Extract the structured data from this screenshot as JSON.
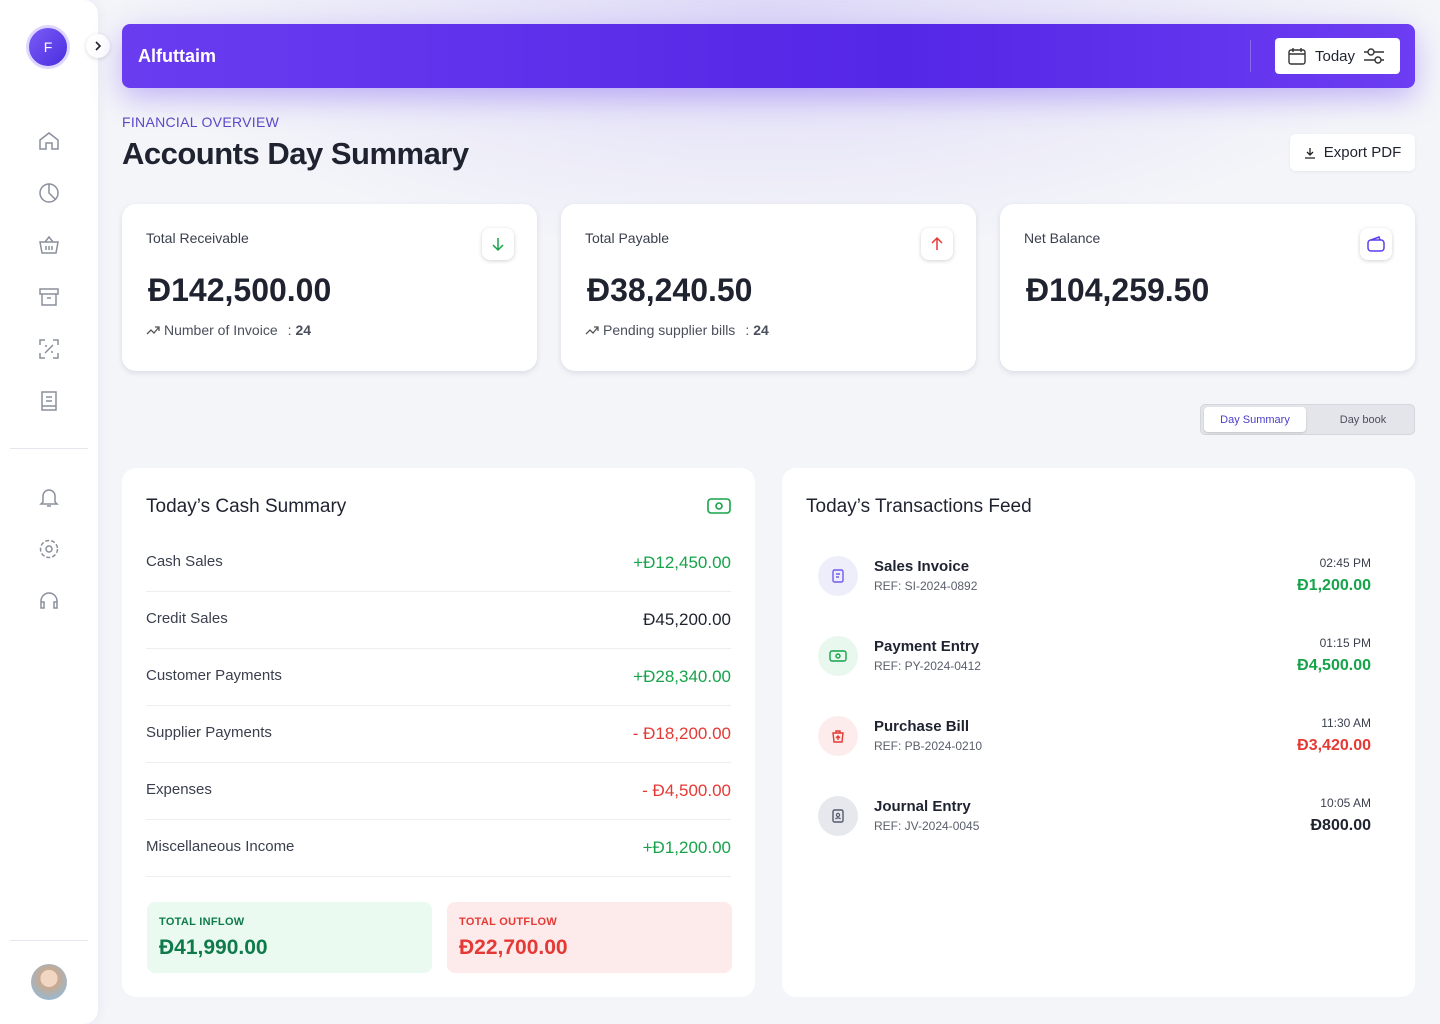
{
  "brand": "Alfuttaim",
  "date_filter": "Today",
  "header": {
    "eyebrow": "FINANCIAL OVERVIEW",
    "title": "Accounts Day Summary",
    "export": "Export PDF"
  },
  "cards": [
    {
      "label": "Total Receivable",
      "amount": "Đ142,500.00",
      "note": "Number of Invoice",
      "count": "24",
      "color": "#16a34a"
    },
    {
      "label": "Total Payable",
      "amount": "Đ38,240.50",
      "note": "Pending supplier bills",
      "count": "24",
      "color": "#e53935"
    },
    {
      "label": "Net Balance",
      "amount": "Đ104,259.50",
      "color": "#5b3df0"
    }
  ],
  "tabs": [
    "Day Summary",
    "Day book"
  ],
  "cash_summary": {
    "title": "Today’s Cash Summary",
    "rows": [
      {
        "label": "Cash Sales",
        "amount": "+Đ12,450.00",
        "color": "#16a34a"
      },
      {
        "label": "Credit Sales",
        "amount": "Đ45,200.00",
        "color": "#1f2330"
      },
      {
        "label": "Customer Payments",
        "amount": "+Đ28,340.00",
        "color": "#16a34a"
      },
      {
        "label": "Supplier Payments",
        "amount": "- Đ18,200.00",
        "color": "#e53935"
      },
      {
        "label": "Expenses",
        "amount": "- Đ4,500.00",
        "color": "#e53935"
      },
      {
        "label": "Miscellaneous Income",
        "amount": "+Đ1,200.00",
        "color": "#16a34a"
      }
    ],
    "totals": [
      {
        "label": "TOTAL INFLOW",
        "amount": "Đ41,990.00",
        "color": "#0f7a4a",
        "bg": "#eafaf1"
      },
      {
        "label": "TOTAL OUTFLOW",
        "amount": "Đ22,700.00",
        "color": "#e53935",
        "bg": "#fdeaea"
      }
    ]
  },
  "feed": {
    "title": "Today’s Transactions Feed",
    "items": [
      {
        "title": "Sales Invoice",
        "ref": "REF: SI-2024-0892",
        "time": "02:45 PM",
        "amount": "Đ1,200.00",
        "color": "#16a34a",
        "icon_bg": "#eeeefb",
        "icon_color": "#6d5cf0"
      },
      {
        "title": "Payment Entry",
        "ref": "REF: PY-2024-0412",
        "time": "01:15 PM",
        "amount": "Đ4,500.00",
        "color": "#16a34a",
        "icon_bg": "#e8f8ee",
        "icon_color": "#16a34a"
      },
      {
        "title": "Purchase Bill",
        "ref": "REF: PB-2024-0210",
        "time": "11:30 AM",
        "amount": "Đ3,420.00",
        "color": "#e53935",
        "icon_bg": "#fdecec",
        "icon_color": "#e53935"
      },
      {
        "title": "Journal Entry",
        "ref": "REF: JV-2024-0045",
        "time": "10:05 AM",
        "amount": "Đ800.00",
        "color": "#1f2330",
        "icon_bg": "#e6e8ee",
        "icon_color": "#555b6b"
      }
    ]
  }
}
